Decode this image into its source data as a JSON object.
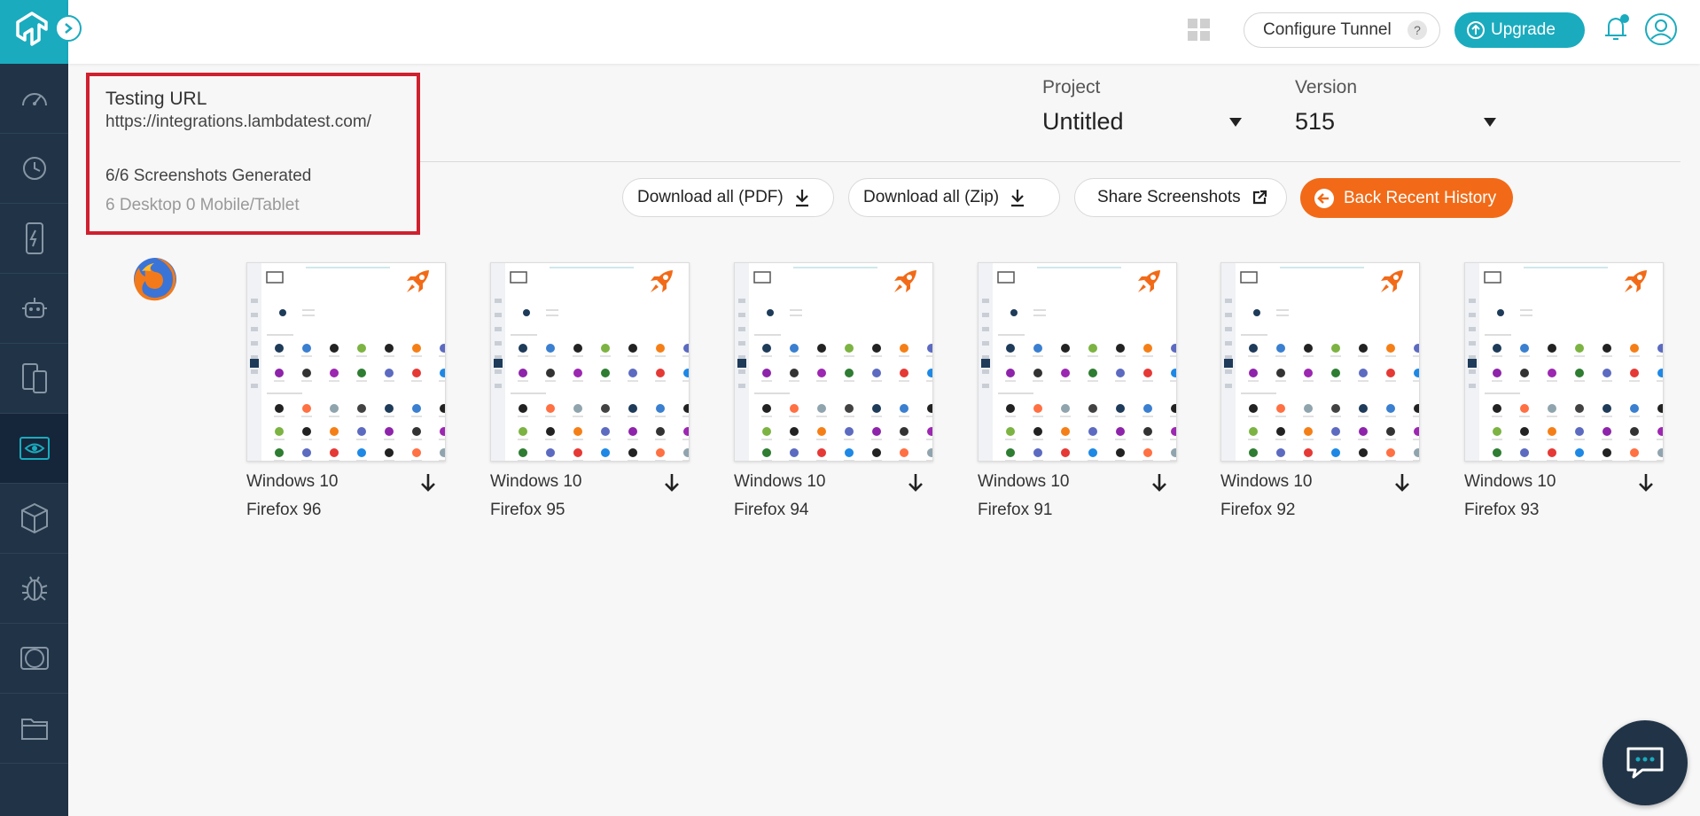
{
  "topbar": {
    "configure_tunnel": "Configure Tunnel",
    "help_mark": "?",
    "upgrade": "Upgrade",
    "icons": [
      "apps-grid-icon",
      "bell-icon",
      "user-icon"
    ]
  },
  "sidebar": {
    "items": [
      {
        "name": "dashboard",
        "icon": "speedometer-icon"
      },
      {
        "name": "history",
        "icon": "clock-icon"
      },
      {
        "name": "real-time",
        "icon": "mobile-bolt-icon"
      },
      {
        "name": "automation",
        "icon": "robot-icon"
      },
      {
        "name": "app-testing",
        "icon": "devices-icon"
      },
      {
        "name": "visual-ui",
        "icon": "eye-icon",
        "active": true
      },
      {
        "name": "test-at-scale",
        "icon": "cube-icon"
      },
      {
        "name": "issue-tracker",
        "icon": "bug-icon"
      },
      {
        "name": "smart-ui",
        "icon": "compare-icon"
      },
      {
        "name": "files",
        "icon": "folder-icon"
      }
    ]
  },
  "info": {
    "title": "Testing URL",
    "url": "https://integrations.lambdatest.com/",
    "generated": "6/6 Screenshots Generated",
    "devices": "6 Desktop 0 Mobile/Tablet"
  },
  "project": {
    "label": "Project",
    "value": "Untitled"
  },
  "version": {
    "label": "Version",
    "value": "515"
  },
  "actions": {
    "download_pdf": "Download all (PDF)",
    "download_zip": "Download all (Zip)",
    "share": "Share Screenshots",
    "back": "Back Recent History"
  },
  "screenshots": [
    {
      "os": "Windows 10",
      "browser": "Firefox 96"
    },
    {
      "os": "Windows 10",
      "browser": "Firefox 95"
    },
    {
      "os": "Windows 10",
      "browser": "Firefox 94"
    },
    {
      "os": "Windows 10",
      "browser": "Firefox 91"
    },
    {
      "os": "Windows 10",
      "browser": "Firefox 92"
    },
    {
      "os": "Windows 10",
      "browser": "Firefox 93"
    }
  ],
  "colors": {
    "brand": "#1aabbe",
    "sidebar": "#213447",
    "accent_orange": "#f26a17",
    "highlight_red": "#d0202e"
  }
}
